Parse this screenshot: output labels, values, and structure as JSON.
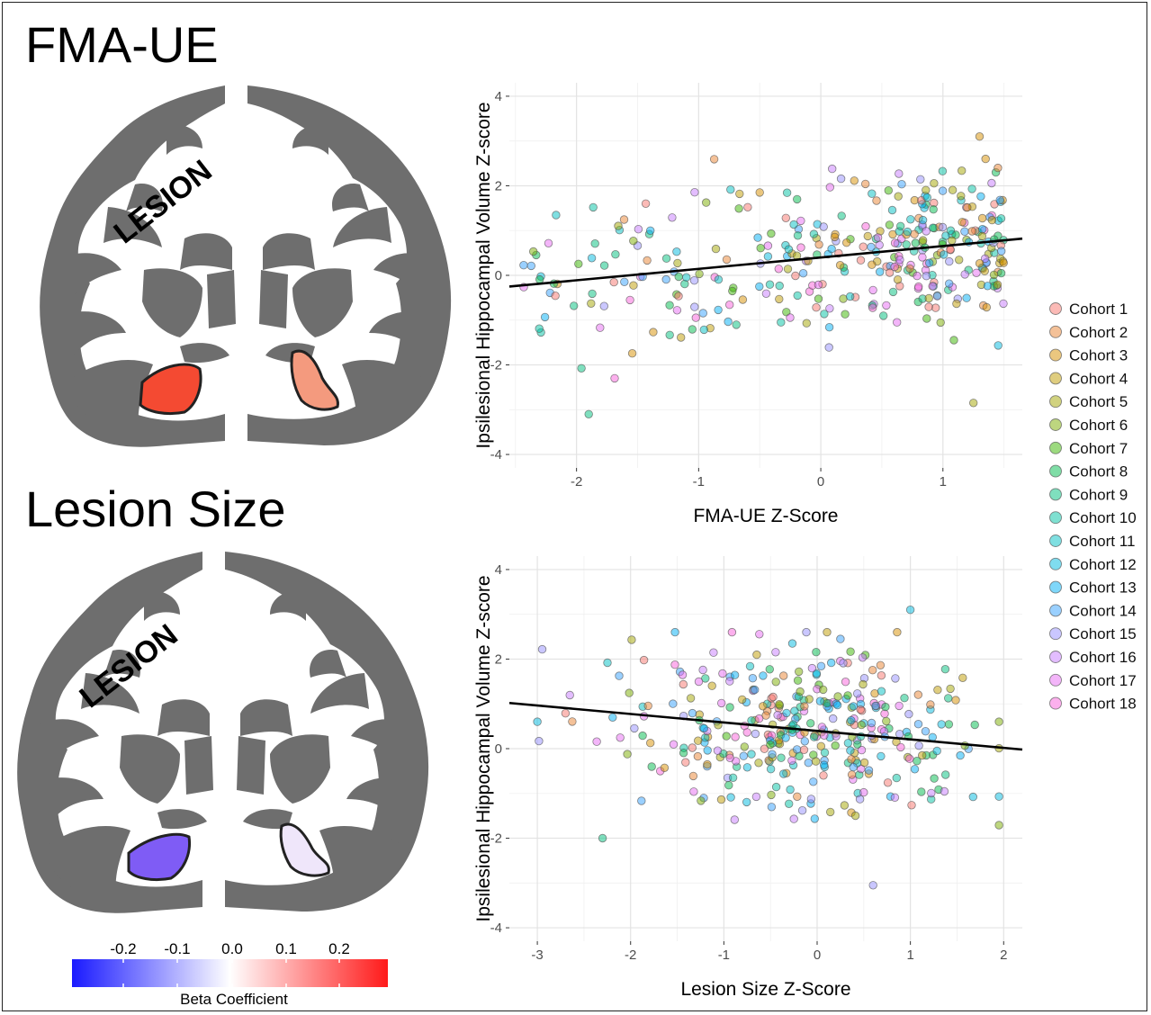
{
  "panels": {
    "top_title": "FMA-UE",
    "bottom_title": "Lesion Size",
    "brain_label": "LESION"
  },
  "colorbar": {
    "title": "Beta Coefficient",
    "ticks": [
      "-0.2",
      "-0.1",
      "0.0",
      "0.1",
      "0.2"
    ],
    "colors": [
      "#1a1aff",
      "#ffffff",
      "#ff1a1a"
    ]
  },
  "brain_regions": {
    "top": {
      "left_hippocampus_color": "#f44a32",
      "right_hippocampus_color": "#f49a7e"
    },
    "bottom": {
      "left_hippocampus_color": "#7f5cf5",
      "right_hippocampus_color": "#efe6fa"
    },
    "tissue_color": "#6e6e6e"
  },
  "legend": {
    "cohorts": [
      "Cohort 1",
      "Cohort 2",
      "Cohort 3",
      "Cohort 4",
      "Cohort 5",
      "Cohort 6",
      "Cohort 7",
      "Cohort 8",
      "Cohort 9",
      "Cohort 10",
      "Cohort 11",
      "Cohort 12",
      "Cohort 13",
      "Cohort 14",
      "Cohort 15",
      "Cohort 16",
      "Cohort 17",
      "Cohort 18"
    ],
    "colors": [
      "#f8766d",
      "#ea8331",
      "#d89000",
      "#c09b00",
      "#a3a500",
      "#7cae00",
      "#39b600",
      "#00bb4e",
      "#00bf7d",
      "#00c1a3",
      "#00bfc4",
      "#00bae0",
      "#00b0f6",
      "#35a2ff",
      "#9590ff",
      "#c77cff",
      "#e76bf3",
      "#fa62db"
    ]
  },
  "chart_data": [
    {
      "type": "scatter",
      "xlabel": "FMA-UE Z-Score",
      "ylabel": "Ipsilesional Hippocampal Volume Z-score",
      "xlim": [
        -2.55,
        1.65
      ],
      "ylim": [
        -4.3,
        4.3
      ],
      "xticks": [
        -2,
        -1,
        0,
        1
      ],
      "yticks": [
        -4,
        -2,
        0,
        2,
        4
      ],
      "grid": true,
      "legend": "right",
      "fit_line": {
        "x": [
          -2.55,
          1.65
        ],
        "y": [
          -0.25,
          0.82
        ]
      },
      "outliers": [
        {
          "x": 1.3,
          "y": 3.1
        },
        {
          "x": -1.9,
          "y": -3.1
        },
        {
          "x": 1.45,
          "y": 2.4
        },
        {
          "x": 1.25,
          "y": -2.85
        },
        {
          "x": -0.5,
          "y": 1.85
        }
      ],
      "n_points": 360
    },
    {
      "type": "scatter",
      "xlabel": "Lesion Size Z-Score",
      "ylabel": "Ipsilesional Hippocampal Volume Z-score",
      "xlim": [
        -3.3,
        2.2
      ],
      "ylim": [
        -4.3,
        4.3
      ],
      "xticks": [
        -3,
        -2,
        -1,
        0,
        1,
        2
      ],
      "yticks": [
        -4,
        -2,
        0,
        2,
        4
      ],
      "grid": true,
      "legend": "right",
      "fit_line": {
        "x": [
          -3.3,
          2.2
        ],
        "y": [
          1.02,
          -0.02
        ]
      },
      "outliers": [
        {
          "x": 1.0,
          "y": 3.1
        },
        {
          "x": -2.3,
          "y": -2.0
        },
        {
          "x": 0.6,
          "y": -3.05
        },
        {
          "x": -3.0,
          "y": 0.6
        },
        {
          "x": 0.25,
          "y": 2.45
        }
      ],
      "n_points": 360
    }
  ]
}
